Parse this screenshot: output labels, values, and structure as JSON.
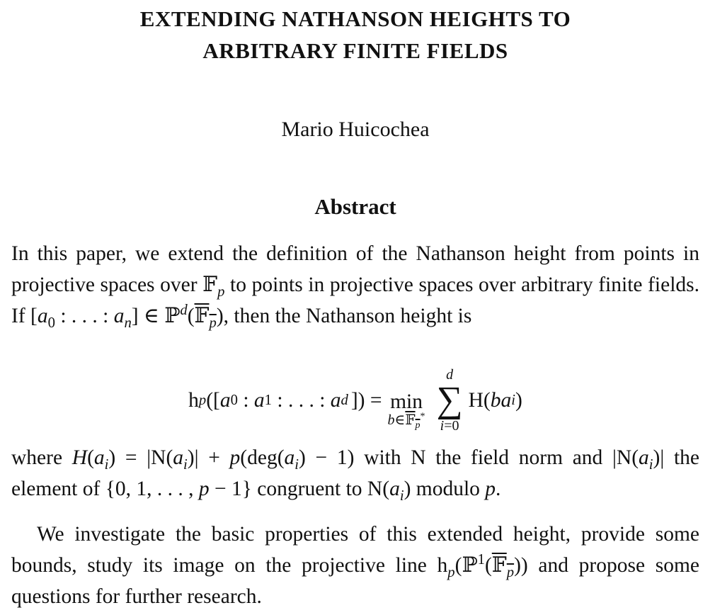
{
  "title": [
    "EXTENDING NATHANSON HEIGHTS TO",
    "ARBITRARY FINITE FIELDS"
  ],
  "author": "Mario Huicochea",
  "abstract": {
    "heading": "Abstract",
    "p1": [
      "In this paper, we extend the definition of the Nathanson height from points in projective spaces over 𝔽",
      "p",
      " to points in projective spaces over arbitrary finite fields. If [",
      "a",
      "0",
      " : . . . : ",
      "a",
      "n",
      "] ∈ ℙ",
      "d",
      "(",
      "𝔽",
      "p",
      "), then the Nathanson height is"
    ],
    "equation": [
      "h",
      "p",
      "([",
      "a",
      "0",
      " : ",
      "a",
      "1",
      " : . . . : ",
      "a",
      "d",
      "]) =",
      "min",
      "b",
      "∈",
      "𝔽",
      "p",
      "*",
      "d",
      "∑",
      "i",
      "=0",
      "H(",
      "b",
      "a",
      "i",
      ")"
    ],
    "p2": [
      "where ",
      "H",
      "(",
      "a",
      "i",
      ") = |N(",
      "a",
      "i",
      ")| + ",
      "p",
      "(deg(",
      "a",
      "i",
      ") − 1) with N the field norm and |N(",
      "a",
      "i",
      ")| the element of {0, 1, . . . , ",
      "p",
      " − 1} congruent to N(",
      "a",
      "i",
      ") modulo ",
      "p",
      "."
    ],
    "p3": [
      "We investigate the basic properties of this extended height, provide some bounds, study its image on the projective line h",
      "p",
      "(ℙ",
      "1",
      "(",
      "𝔽",
      "p",
      ")) and propose some questions for further research."
    ]
  }
}
